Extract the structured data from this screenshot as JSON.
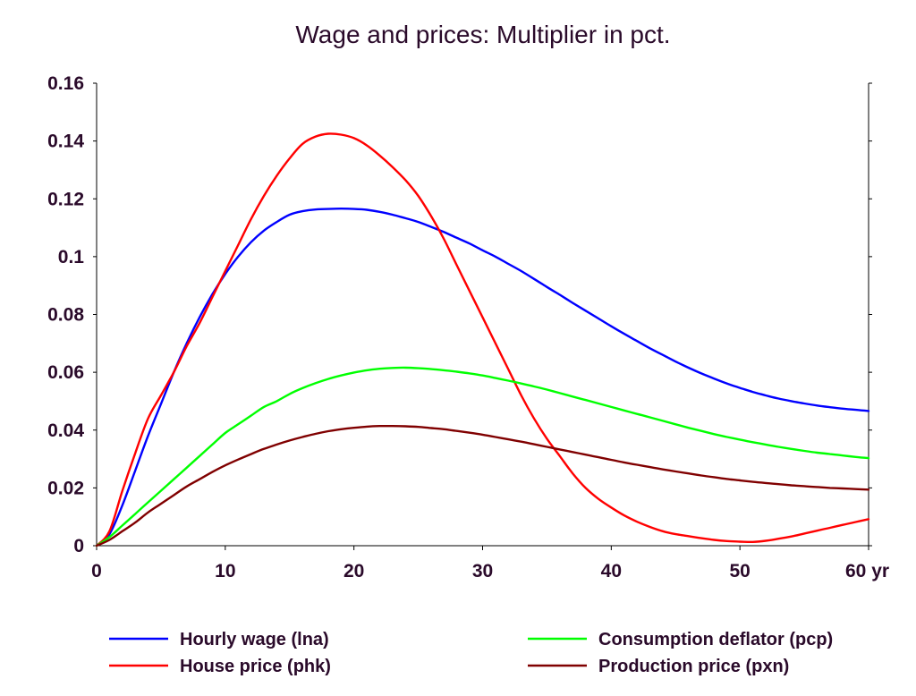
{
  "chart_data": {
    "type": "line",
    "title": "Wage and prices: Multiplier in pct.",
    "xlim": [
      0,
      60
    ],
    "ylim": [
      0,
      0.16
    ],
    "x_ticks": [
      0,
      10,
      20,
      30,
      40,
      50,
      60
    ],
    "x_tick_labels": [
      "0",
      "10",
      "20",
      "30",
      "40",
      "50",
      "60 yr"
    ],
    "y_ticks": [
      0,
      0.02,
      0.04,
      0.06,
      0.08,
      0.1,
      0.12,
      0.14,
      0.16
    ],
    "y_tick_labels": [
      "0",
      "0.02",
      "0.04",
      "0.06",
      "0.08",
      "0.1",
      "0.12",
      "0.14",
      "0.16"
    ],
    "grid": false,
    "legend_position": "bottom",
    "x": [
      0,
      1,
      2,
      3,
      4,
      5,
      6,
      7,
      8,
      9,
      10,
      11,
      12,
      13,
      14,
      15,
      16,
      17,
      18,
      19,
      20,
      21,
      22,
      23,
      24,
      25,
      26,
      27,
      28,
      29,
      30,
      31,
      32,
      33,
      34,
      35,
      36,
      37,
      38,
      39,
      40,
      41,
      42,
      43,
      44,
      45,
      46,
      47,
      48,
      49,
      50,
      51,
      52,
      53,
      54,
      55,
      56,
      57,
      58,
      59,
      60
    ],
    "series": [
      {
        "name": "Hourly wage (lna)",
        "color": "#0000ff",
        "values": [
          0,
          0.004,
          0.014,
          0.026,
          0.038,
          0.049,
          0.06,
          0.07,
          0.079,
          0.087,
          0.094,
          0.1,
          0.105,
          0.109,
          0.112,
          0.1145,
          0.1157,
          0.1163,
          0.1165,
          0.1166,
          0.1165,
          0.1162,
          0.1155,
          0.1145,
          0.1133,
          0.112,
          0.1103,
          0.1085,
          0.1065,
          0.1045,
          0.1022,
          0.1,
          0.0975,
          0.095,
          0.0923,
          0.0895,
          0.0868,
          0.084,
          0.0813,
          0.0786,
          0.0759,
          0.0733,
          0.0708,
          0.0683,
          0.066,
          0.0637,
          0.0616,
          0.0596,
          0.0578,
          0.0561,
          0.0546,
          0.0532,
          0.052,
          0.0509,
          0.05,
          0.0492,
          0.0485,
          0.0479,
          0.0474,
          0.047,
          0.0466
        ]
      },
      {
        "name": "House price (phk)",
        "color": "#ff0000",
        "values": [
          0,
          0.005,
          0.019,
          0.032,
          0.044,
          0.052,
          0.06,
          0.069,
          0.077,
          0.086,
          0.095,
          0.104,
          0.113,
          0.121,
          0.128,
          0.134,
          0.139,
          0.1415,
          0.1425,
          0.1422,
          0.141,
          0.1385,
          0.135,
          0.131,
          0.1265,
          0.121,
          0.114,
          0.106,
          0.097,
          0.088,
          0.079,
          0.07,
          0.061,
          0.052,
          0.044,
          0.037,
          0.031,
          0.025,
          0.02,
          0.0162,
          0.0132,
          0.0105,
          0.0083,
          0.0065,
          0.005,
          0.004,
          0.0033,
          0.0026,
          0.002,
          0.0016,
          0.0014,
          0.0013,
          0.0017,
          0.0024,
          0.0032,
          0.0042,
          0.0052,
          0.0062,
          0.0072,
          0.0082,
          0.0092
        ]
      },
      {
        "name": "Consumption deflator (pcp)",
        "color": "#00ff00",
        "values": [
          0,
          0.003,
          0.007,
          0.011,
          0.015,
          0.019,
          0.023,
          0.027,
          0.031,
          0.035,
          0.039,
          0.042,
          0.045,
          0.048,
          0.05,
          0.0525,
          0.0545,
          0.0562,
          0.0577,
          0.0589,
          0.0599,
          0.0607,
          0.0612,
          0.0615,
          0.0616,
          0.0614,
          0.0611,
          0.0607,
          0.0602,
          0.0596,
          0.0589,
          0.058,
          0.0571,
          0.0561,
          0.0551,
          0.054,
          0.0528,
          0.0516,
          0.0504,
          0.0492,
          0.048,
          0.0468,
          0.0456,
          0.0444,
          0.0432,
          0.042,
          0.0408,
          0.0397,
          0.0386,
          0.0376,
          0.0367,
          0.0358,
          0.035,
          0.0342,
          0.0335,
          0.0328,
          0.0322,
          0.0317,
          0.0312,
          0.0307,
          0.0303
        ]
      },
      {
        "name": "Production price (pxn)",
        "color": "#800000",
        "values": [
          0,
          0.002,
          0.005,
          0.008,
          0.0115,
          0.0145,
          0.0175,
          0.0205,
          0.023,
          0.0255,
          0.0278,
          0.0298,
          0.0317,
          0.0335,
          0.035,
          0.0364,
          0.0376,
          0.0387,
          0.0396,
          0.0403,
          0.0408,
          0.0412,
          0.0414,
          0.0414,
          0.0413,
          0.0411,
          0.0407,
          0.0403,
          0.0397,
          0.0391,
          0.0384,
          0.0376,
          0.0368,
          0.036,
          0.0351,
          0.0342,
          0.0333,
          0.0324,
          0.0315,
          0.0306,
          0.0297,
          0.0288,
          0.028,
          0.0272,
          0.0264,
          0.0257,
          0.025,
          0.0243,
          0.0237,
          0.0231,
          0.0226,
          0.0221,
          0.0217,
          0.0213,
          0.0209,
          0.0206,
          0.0203,
          0.02,
          0.0198,
          0.0196,
          0.0194
        ]
      }
    ]
  }
}
